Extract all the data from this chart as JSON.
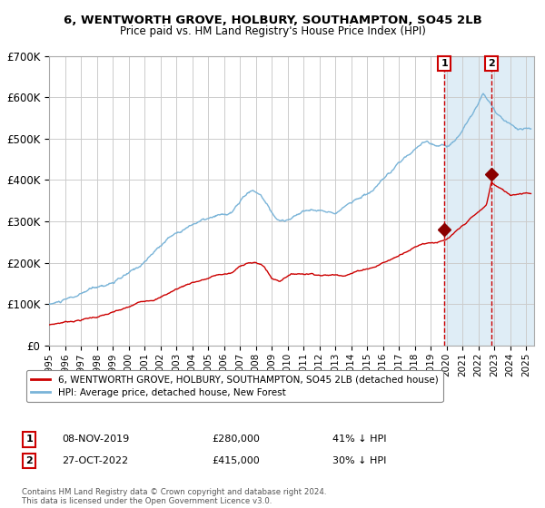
{
  "title": "6, WENTWORTH GROVE, HOLBURY, SOUTHAMPTON, SO45 2LB",
  "subtitle": "Price paid vs. HM Land Registry's House Price Index (HPI)",
  "legend_line1": "6, WENTWORTH GROVE, HOLBURY, SOUTHAMPTON, SO45 2LB (detached house)",
  "legend_line2": "HPI: Average price, detached house, New Forest",
  "marker1_date": "08-NOV-2019",
  "marker1_price": 280000,
  "marker1_label": "41% ↓ HPI",
  "marker1_year": 2019.85,
  "marker2_date": "27-OCT-2022",
  "marker2_price": 415000,
  "marker2_label": "30% ↓ HPI",
  "marker2_year": 2022.82,
  "hpi_color": "#7ab4d8",
  "price_color": "#cc0000",
  "marker_color": "#8b0000",
  "shade_color": "#daeaf5",
  "dashed_color": "#cc0000",
  "grid_color": "#cccccc",
  "footnote": "Contains HM Land Registry data © Crown copyright and database right 2024.\nThis data is licensed under the Open Government Licence v3.0.",
  "ylim": [
    0,
    700000
  ],
  "xlim_start": 1995.0,
  "xlim_end": 2025.5,
  "shade_start": 2019.85,
  "shade_end": 2025.5,
  "hpi_keypoints": [
    [
      1995.0,
      100000
    ],
    [
      1996.0,
      108000
    ],
    [
      1997.0,
      118000
    ],
    [
      1997.5,
      128000
    ],
    [
      1998.5,
      140000
    ],
    [
      1999.5,
      155000
    ],
    [
      2000.5,
      175000
    ],
    [
      2001.5,
      210000
    ],
    [
      2002.5,
      250000
    ],
    [
      2003.5,
      275000
    ],
    [
      2004.5,
      295000
    ],
    [
      2005.5,
      300000
    ],
    [
      2006.5,
      305000
    ],
    [
      2007.2,
      340000
    ],
    [
      2007.8,
      358000
    ],
    [
      2008.3,
      345000
    ],
    [
      2008.8,
      320000
    ],
    [
      2009.3,
      290000
    ],
    [
      2009.8,
      282000
    ],
    [
      2010.5,
      300000
    ],
    [
      2011.0,
      310000
    ],
    [
      2011.5,
      315000
    ],
    [
      2012.0,
      310000
    ],
    [
      2012.5,
      308000
    ],
    [
      2013.0,
      315000
    ],
    [
      2013.5,
      325000
    ],
    [
      2014.0,
      340000
    ],
    [
      2014.5,
      350000
    ],
    [
      2015.0,
      360000
    ],
    [
      2015.5,
      370000
    ],
    [
      2016.0,
      385000
    ],
    [
      2016.5,
      400000
    ],
    [
      2017.0,
      420000
    ],
    [
      2017.5,
      440000
    ],
    [
      2018.0,
      460000
    ],
    [
      2018.5,
      475000
    ],
    [
      2019.0,
      472000
    ],
    [
      2019.5,
      468000
    ],
    [
      2019.85,
      475000
    ],
    [
      2020.0,
      468000
    ],
    [
      2020.5,
      478000
    ],
    [
      2021.0,
      510000
    ],
    [
      2021.5,
      545000
    ],
    [
      2022.0,
      578000
    ],
    [
      2022.3,
      603000
    ],
    [
      2022.7,
      592000
    ],
    [
      2023.0,
      572000
    ],
    [
      2023.5,
      552000
    ],
    [
      2024.0,
      540000
    ],
    [
      2024.5,
      530000
    ],
    [
      2025.0,
      535000
    ]
  ],
  "price_keypoints": [
    [
      1995.0,
      50000
    ],
    [
      1996.0,
      58000
    ],
    [
      1997.0,
      65000
    ],
    [
      1998.0,
      73000
    ],
    [
      1999.0,
      82000
    ],
    [
      2000.0,
      92000
    ],
    [
      2000.5,
      100000
    ],
    [
      2001.0,
      108000
    ],
    [
      2002.0,
      120000
    ],
    [
      2003.0,
      140000
    ],
    [
      2004.0,
      158000
    ],
    [
      2005.0,
      168000
    ],
    [
      2005.5,
      175000
    ],
    [
      2006.0,
      178000
    ],
    [
      2006.5,
      180000
    ],
    [
      2007.0,
      195000
    ],
    [
      2007.5,
      207000
    ],
    [
      2008.0,
      205000
    ],
    [
      2008.5,
      198000
    ],
    [
      2009.0,
      168000
    ],
    [
      2009.5,
      162000
    ],
    [
      2010.0,
      178000
    ],
    [
      2010.5,
      182000
    ],
    [
      2011.0,
      183000
    ],
    [
      2011.5,
      185000
    ],
    [
      2012.0,
      184000
    ],
    [
      2012.5,
      183000
    ],
    [
      2013.0,
      184000
    ],
    [
      2013.5,
      186000
    ],
    [
      2014.0,
      192000
    ],
    [
      2014.5,
      198000
    ],
    [
      2015.0,
      205000
    ],
    [
      2015.5,
      210000
    ],
    [
      2016.0,
      220000
    ],
    [
      2016.5,
      228000
    ],
    [
      2017.0,
      238000
    ],
    [
      2017.5,
      252000
    ],
    [
      2018.0,
      262000
    ],
    [
      2018.5,
      272000
    ],
    [
      2019.0,
      276000
    ],
    [
      2019.85,
      280000
    ],
    [
      2020.0,
      282000
    ],
    [
      2020.5,
      295000
    ],
    [
      2021.0,
      310000
    ],
    [
      2021.5,
      328000
    ],
    [
      2022.0,
      342000
    ],
    [
      2022.5,
      358000
    ],
    [
      2022.82,
      415000
    ],
    [
      2023.0,
      408000
    ],
    [
      2023.5,
      395000
    ],
    [
      2024.0,
      383000
    ],
    [
      2024.5,
      388000
    ],
    [
      2025.0,
      393000
    ]
  ]
}
